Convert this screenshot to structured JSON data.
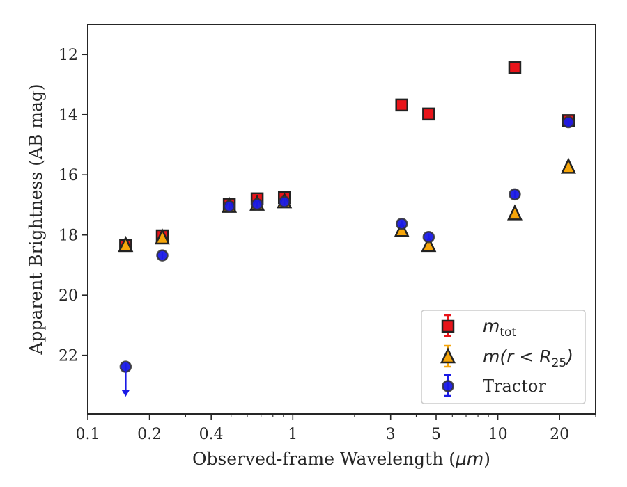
{
  "chart_data": {
    "type": "scatter",
    "xlabel": "Observed-frame Wavelength (",
    "xlabel_unit": "μm",
    "xlabel_end": ")",
    "ylabel": "Apparent Brightness (AB mag)",
    "xscale": "log",
    "xlim": [
      0.1,
      30
    ],
    "ylim": [
      23.95,
      11.0
    ],
    "y_inverted": true,
    "x_ticks": [
      0.1,
      0.2,
      0.4,
      1,
      3,
      5,
      10,
      20
    ],
    "x_tick_labels": [
      "0.1",
      "0.2",
      "0.4",
      "1",
      "3",
      "5",
      "10",
      "20"
    ],
    "y_ticks": [
      12,
      14,
      16,
      18,
      20,
      22
    ],
    "y_tick_labels": [
      "12",
      "14",
      "16",
      "18",
      "20",
      "22"
    ],
    "legend_position": "lower-right",
    "series": [
      {
        "name": "m_tot",
        "legend_main": "m",
        "legend_sub": "tot",
        "marker": "square",
        "color": "#e8141a",
        "points": [
          {
            "x": 0.153,
            "y": 18.35
          },
          {
            "x": 0.231,
            "y": 18.03
          },
          {
            "x": 0.49,
            "y": 16.98
          },
          {
            "x": 0.67,
            "y": 16.8
          },
          {
            "x": 0.91,
            "y": 16.76
          },
          {
            "x": 3.4,
            "y": 13.68
          },
          {
            "x": 4.6,
            "y": 13.98
          },
          {
            "x": 12.1,
            "y": 12.44
          },
          {
            "x": 22.1,
            "y": 14.2
          }
        ]
      },
      {
        "name": "m(r < R25)",
        "legend_main": "m(r < R",
        "legend_sub": "25",
        "legend_end": ")",
        "marker": "triangle",
        "color": "#f5a50a",
        "points": [
          {
            "x": 0.153,
            "y": 18.35
          },
          {
            "x": 0.231,
            "y": 18.1
          },
          {
            "x": 0.49,
            "y": 17.05
          },
          {
            "x": 0.67,
            "y": 16.98
          },
          {
            "x": 0.91,
            "y": 16.9
          },
          {
            "x": 3.4,
            "y": 17.85
          },
          {
            "x": 4.6,
            "y": 18.35
          },
          {
            "x": 12.1,
            "y": 17.3
          },
          {
            "x": 22.1,
            "y": 15.75
          }
        ]
      },
      {
        "name": "Tractor",
        "marker": "circle",
        "color": "#1a1ae6",
        "points": [
          {
            "x": 0.153,
            "y": 22.38,
            "upper_limit": true
          },
          {
            "x": 0.231,
            "y": 18.68
          },
          {
            "x": 0.49,
            "y": 17.05
          },
          {
            "x": 0.67,
            "y": 16.98
          },
          {
            "x": 0.91,
            "y": 16.9
          },
          {
            "x": 3.4,
            "y": 17.63
          },
          {
            "x": 4.6,
            "y": 18.07
          },
          {
            "x": 12.1,
            "y": 16.65
          },
          {
            "x": 22.1,
            "y": 14.25
          }
        ]
      }
    ]
  }
}
